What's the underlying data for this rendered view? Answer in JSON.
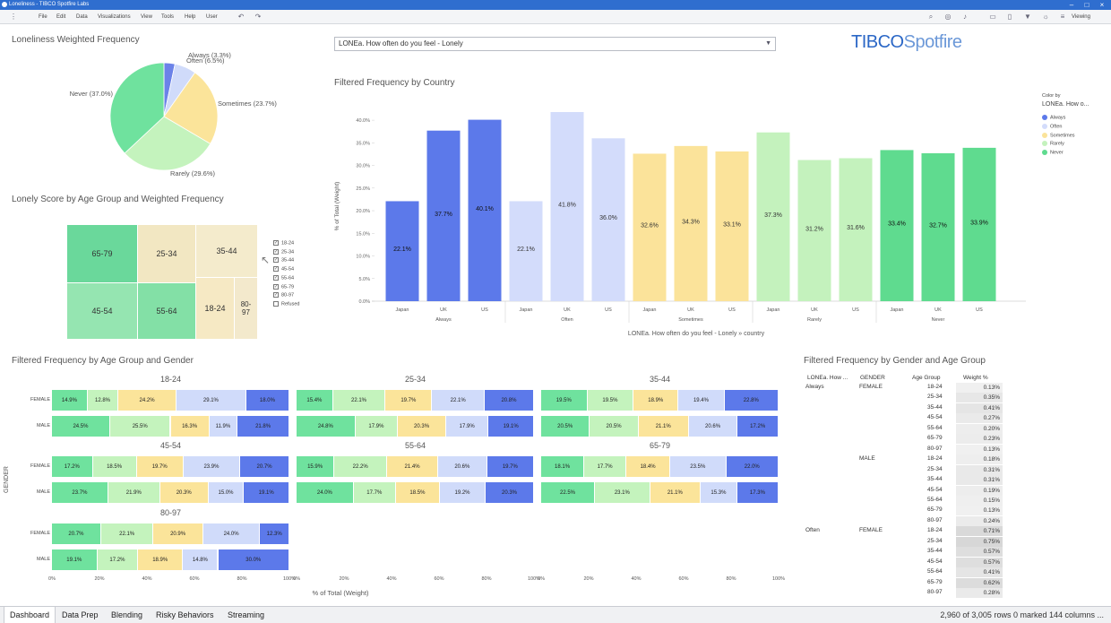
{
  "window": {
    "title": "Loneliness - TIBCO Spotfire Labs"
  },
  "menu": [
    "File",
    "Edit",
    "Data",
    "Visualizations",
    "View",
    "Tools",
    "Help",
    "User"
  ],
  "viewing": "Viewing",
  "logo": {
    "a": "TIBCO",
    "b": "Spotfire"
  },
  "dropdown": {
    "value": "LONEa. How often do you feel - Lonely"
  },
  "titles": {
    "pie": "Loneliness Weighted Frequency",
    "treemap": "Lonely Score by Age Group and Weighted Frequency",
    "country": "Filtered Frequency by Country",
    "agegender": "Filtered Frequency by Age Group and Gender",
    "table": "Filtered Frequency by Gender and Age Group"
  },
  "pie_chart": {
    "type": "pie",
    "slices": [
      {
        "label": "Always (3.3%)",
        "value": 3.3,
        "color": "#6b82e8"
      },
      {
        "label": "Often (6.5%)",
        "value": 6.5,
        "color": "#d0dbfa"
      },
      {
        "label": "Sometimes (23.7%)",
        "value": 23.7,
        "color": "#fbe49a"
      },
      {
        "label": "Rarely (29.6%)",
        "value": 29.6,
        "color": "#c4f3bd"
      },
      {
        "label": "Never (37.0%)",
        "value": 37.0,
        "color": "#6fe29e"
      }
    ]
  },
  "treemap": {
    "cells": [
      "65-79",
      "25-34",
      "35-44",
      "45-54",
      "55-64",
      "18-24",
      "80-97"
    ],
    "legend": [
      "18-24",
      "25-34",
      "35-44",
      "45-54",
      "55-64",
      "65-79",
      "80-97",
      "Refused"
    ]
  },
  "chart_data": {
    "type": "bar",
    "title": "Filtered Frequency by Country",
    "ylabel": "% of Total (Weight)",
    "xlabel": "LONEa. How often do you feel - Lonely » country",
    "yticks": [
      "0.0%",
      "5.0%",
      "10.0%",
      "15.0%",
      "20.0%",
      "25.0%",
      "30.0%",
      "35.0%",
      "40.0%"
    ],
    "ylim": [
      0,
      42
    ],
    "groups": [
      "Always",
      "Often",
      "Sometimes",
      "Rarely",
      "Never"
    ],
    "categories": [
      "Japan",
      "UK",
      "US",
      "Japan",
      "UK",
      "US",
      "Japan",
      "UK",
      "US",
      "Japan",
      "UK",
      "US",
      "Japan",
      "UK",
      "US"
    ],
    "values": [
      22.1,
      37.7,
      40.1,
      22.1,
      41.8,
      36.0,
      32.6,
      34.3,
      33.1,
      37.3,
      31.2,
      31.6,
      33.4,
      32.7,
      33.9
    ],
    "labels": [
      "22.1%",
      "37.7%",
      "40.1%",
      "22.1%",
      "41.8%",
      "36.0%",
      "32.6%",
      "34.3%",
      "33.1%",
      "37.3%",
      "31.2%",
      "31.6%",
      "33.4%",
      "32.7%",
      "33.9%"
    ],
    "colors": [
      "#5c79ea",
      "#5c79ea",
      "#5c79ea",
      "#d3dcfb",
      "#d3dcfb",
      "#d3dcfb",
      "#fbe39a",
      "#fbe39a",
      "#fbe39a",
      "#c4f2bd",
      "#c4f2bd",
      "#c4f2bd",
      "#5fdb8f",
      "#5fdb8f",
      "#5fdb8f"
    ],
    "legend": {
      "title": "Color by",
      "subtitle": "LONEa. How o...",
      "items": [
        "Always",
        "Often",
        "Sometimes",
        "Rarely",
        "Never"
      ]
    }
  },
  "agegender": {
    "ylabel": "GENDER",
    "xlabel": "% of Total (Weight)",
    "ticks": [
      "0%",
      "20%",
      "40%",
      "60%",
      "80%",
      "100%"
    ],
    "colors": [
      "#6fe29e",
      "#c4f3bd",
      "#fbe49a",
      "#d0dbfa",
      "#5c79ea"
    ],
    "panels": [
      {
        "age": "18-24",
        "rows": [
          {
            "g": "FEMALE",
            "v": [
              14.9,
              12.8,
              24.2,
              29.1,
              18.0
            ],
            "l": [
              "14.9%",
              "12.8%",
              "24.2%",
              "29.1%",
              "18.0%"
            ]
          },
          {
            "g": "MALE",
            "v": [
              24.5,
              25.5,
              16.3,
              11.9,
              21.8
            ],
            "l": [
              "24.5%",
              "25.5%",
              "16.3%",
              "11.9%",
              "21.8%"
            ]
          }
        ]
      },
      {
        "age": "25-34",
        "rows": [
          {
            "g": "FEMALE",
            "v": [
              15.4,
              22.1,
              19.7,
              22.1,
              20.8
            ],
            "l": [
              "15.4%",
              "22.1%",
              "19.7%",
              "22.1%",
              "20.8%"
            ]
          },
          {
            "g": "MALE",
            "v": [
              24.8,
              17.9,
              20.3,
              17.9,
              19.1
            ],
            "l": [
              "24.8%",
              "17.9%",
              "20.3%",
              "17.9%",
              "19.1%"
            ]
          }
        ]
      },
      {
        "age": "35-44",
        "rows": [
          {
            "g": "FEMALE",
            "v": [
              19.5,
              19.5,
              18.9,
              19.4,
              22.8
            ],
            "l": [
              "19.5%",
              "19.5%",
              "18.9%",
              "19.4%",
              "22.8%"
            ]
          },
          {
            "g": "MALE",
            "v": [
              20.5,
              20.5,
              21.1,
              20.6,
              17.2
            ],
            "l": [
              "20.5%",
              "20.5%",
              "21.1%",
              "20.6%",
              "17.2%"
            ]
          }
        ]
      },
      {
        "age": "45-54",
        "rows": [
          {
            "g": "FEMALE",
            "v": [
              17.2,
              18.5,
              19.7,
              23.9,
              20.7
            ],
            "l": [
              "17.2%",
              "18.5%",
              "19.7%",
              "23.9%",
              "20.7%"
            ]
          },
          {
            "g": "MALE",
            "v": [
              23.7,
              21.9,
              20.3,
              15.0,
              19.1
            ],
            "l": [
              "23.7%",
              "21.9%",
              "20.3%",
              "15.0%",
              "19.1%"
            ]
          }
        ]
      },
      {
        "age": "55-64",
        "rows": [
          {
            "g": "FEMALE",
            "v": [
              15.9,
              22.2,
              21.4,
              20.6,
              19.7
            ],
            "l": [
              "15.9%",
              "22.2%",
              "21.4%",
              "20.6%",
              "19.7%"
            ]
          },
          {
            "g": "MALE",
            "v": [
              24.0,
              17.7,
              18.5,
              19.2,
              20.3
            ],
            "l": [
              "24.0%",
              "17.7%",
              "18.5%",
              "19.2%",
              "20.3%"
            ]
          }
        ]
      },
      {
        "age": "65-79",
        "rows": [
          {
            "g": "FEMALE",
            "v": [
              18.1,
              17.7,
              18.4,
              23.5,
              22.0
            ],
            "l": [
              "18.1%",
              "17.7%",
              "18.4%",
              "23.5%",
              "22.0%"
            ]
          },
          {
            "g": "MALE",
            "v": [
              22.5,
              23.1,
              21.1,
              15.3,
              17.3
            ],
            "l": [
              "22.5%",
              "23.1%",
              "21.1%",
              "15.3%",
              "17.3%"
            ]
          }
        ]
      },
      {
        "age": "80-97",
        "rows": [
          {
            "g": "FEMALE",
            "v": [
              20.7,
              22.1,
              20.9,
              24.0,
              12.3
            ],
            "l": [
              "20.7%",
              "22.1%",
              "20.9%",
              "24.0%",
              "12.3%"
            ]
          },
          {
            "g": "MALE",
            "v": [
              19.1,
              17.2,
              18.9,
              14.8,
              30.0
            ],
            "l": [
              "19.1%",
              "17.2%",
              "18.9%",
              "14.8%",
              "30.0%"
            ]
          }
        ]
      }
    ]
  },
  "cross_table": {
    "headers": [
      "LONEa. How ...",
      "GENDER",
      "Age Group",
      "Weight %"
    ],
    "rows": [
      {
        "a": "Always",
        "g": "FEMALE",
        "age": "18-24",
        "w": "0.13%"
      },
      {
        "a": "",
        "g": "",
        "age": "25-34",
        "w": "0.35%"
      },
      {
        "a": "",
        "g": "",
        "age": "35-44",
        "w": "0.41%"
      },
      {
        "a": "",
        "g": "",
        "age": "45-54",
        "w": "0.27%"
      },
      {
        "a": "",
        "g": "",
        "age": "55-64",
        "w": "0.20%"
      },
      {
        "a": "",
        "g": "",
        "age": "65-79",
        "w": "0.23%"
      },
      {
        "a": "",
        "g": "",
        "age": "80-97",
        "w": "0.13%"
      },
      {
        "a": "",
        "g": "MALE",
        "age": "18-24",
        "w": "0.18%"
      },
      {
        "a": "",
        "g": "",
        "age": "25-34",
        "w": "0.31%"
      },
      {
        "a": "",
        "g": "",
        "age": "35-44",
        "w": "0.31%"
      },
      {
        "a": "",
        "g": "",
        "age": "45-54",
        "w": "0.19%"
      },
      {
        "a": "",
        "g": "",
        "age": "55-64",
        "w": "0.15%"
      },
      {
        "a": "",
        "g": "",
        "age": "65-79",
        "w": "0.13%"
      },
      {
        "a": "",
        "g": "",
        "age": "80-97",
        "w": "0.24%"
      },
      {
        "a": "Often",
        "g": "FEMALE",
        "age": "18-24",
        "w": "0.71%"
      },
      {
        "a": "",
        "g": "",
        "age": "25-34",
        "w": "0.75%"
      },
      {
        "a": "",
        "g": "",
        "age": "35-44",
        "w": "0.57%"
      },
      {
        "a": "",
        "g": "",
        "age": "45-54",
        "w": "0.57%"
      },
      {
        "a": "",
        "g": "",
        "age": "55-64",
        "w": "0.41%"
      },
      {
        "a": "",
        "g": "",
        "age": "65-79",
        "w": "0.62%"
      },
      {
        "a": "",
        "g": "",
        "age": "80-97",
        "w": "0.28%"
      }
    ]
  },
  "tabs": [
    "Dashboard",
    "Data Prep",
    "Blending",
    "Risky Behaviors",
    "Streaming"
  ],
  "status": "2,960 of 3,005 rows 0 marked 144 columns ..."
}
